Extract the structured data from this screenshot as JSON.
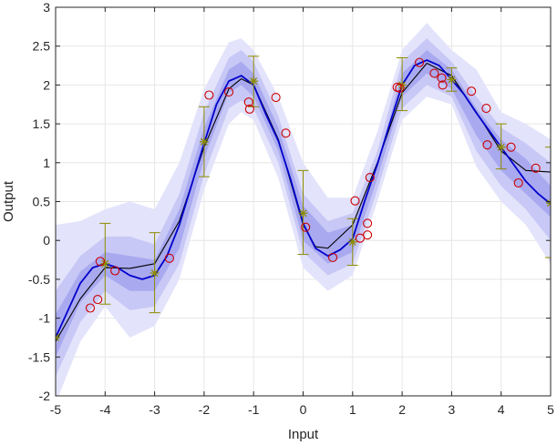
{
  "chart_data": {
    "type": "line",
    "title": "",
    "xlabel": "Input",
    "ylabel": "Output",
    "xlim": [
      -5,
      5
    ],
    "ylim": [
      -2,
      3
    ],
    "xticks": [
      -5,
      -4,
      -3,
      -2,
      -1,
      0,
      1,
      2,
      3,
      4,
      5
    ],
    "yticks": [
      -2,
      -1.5,
      -1,
      -0.5,
      0,
      0.5,
      1,
      1.5,
      2,
      2.5,
      3
    ],
    "xtick_labels": [
      "-5",
      "-4",
      "-3",
      "-2",
      "-1",
      "0",
      "1",
      "2",
      "3",
      "4",
      "5"
    ],
    "ytick_labels": [
      "-2",
      "-1.5",
      "-1",
      "-0.5",
      "0",
      "0.5",
      "1",
      "1.5",
      "2",
      "2.5",
      "3"
    ],
    "grid": true,
    "colors": {
      "outer_band": "#e3e3fb",
      "middle_band": "#c8c8f6",
      "inner_band": "#a9a9f0",
      "mean_line": "#0000cc",
      "true_line": "#000000",
      "observation_marker": "#cc0000",
      "inducing_marker": "#8c8c00",
      "grid": "#e6e6e6",
      "axis": "#262626"
    },
    "series": [
      {
        "kind": "band",
        "x": [
          -5,
          -4.5,
          -4,
          -3.5,
          -3,
          -2.5,
          -2,
          -1.5,
          -1.25,
          -1,
          -0.5,
          0,
          0.5,
          1,
          1.5,
          2,
          2.5,
          3,
          3.5,
          4,
          4.5,
          5
        ],
        "lower": [
          -2.1,
          -1.3,
          -0.85,
          -1.25,
          -1.1,
          -0.5,
          0.65,
          1.5,
          1.65,
          1.55,
          0.8,
          -0.35,
          -0.65,
          -0.45,
          0.5,
          1.55,
          1.85,
          1.75,
          0.95,
          0.5,
          0.2,
          -0.3
        ],
        "upper": [
          0.2,
          0.25,
          0.4,
          0.5,
          0.4,
          1.0,
          1.95,
          2.55,
          2.6,
          2.45,
          1.85,
          1.0,
          0.55,
          0.55,
          1.4,
          2.45,
          2.8,
          2.45,
          2.2,
          1.65,
          1.5,
          1.3
        ]
      },
      {
        "kind": "band",
        "x": [
          -5,
          -4.5,
          -4,
          -3.5,
          -3,
          -2.5,
          -2,
          -1.5,
          -1.25,
          -1,
          -0.5,
          0,
          0.5,
          1,
          1.5,
          2,
          2.5,
          3,
          3.5,
          4,
          4.5,
          5
        ],
        "lower": [
          -1.75,
          -1.05,
          -0.65,
          -0.9,
          -0.85,
          -0.3,
          0.85,
          1.7,
          1.8,
          1.7,
          1.0,
          -0.15,
          -0.45,
          -0.3,
          0.65,
          1.7,
          2.0,
          1.85,
          1.15,
          0.7,
          0.4,
          0.0
        ],
        "upper": [
          -0.65,
          -0.2,
          0.05,
          0.05,
          -0.05,
          0.6,
          1.65,
          2.35,
          2.45,
          2.3,
          1.6,
          0.6,
          0.25,
          0.35,
          1.15,
          2.3,
          2.6,
          2.3,
          1.85,
          1.45,
          1.25,
          1.0
        ]
      },
      {
        "kind": "band",
        "x": [
          -5,
          -4.5,
          -4,
          -3.5,
          -3,
          -2.5,
          -2,
          -1.5,
          -1.25,
          -1,
          -0.5,
          0,
          0.5,
          1,
          1.5,
          2,
          2.5,
          3,
          3.5,
          4,
          4.5,
          5
        ],
        "lower": [
          -1.5,
          -0.8,
          -0.45,
          -0.65,
          -0.65,
          -0.1,
          1.05,
          1.9,
          2.0,
          1.85,
          1.15,
          0.0,
          -0.3,
          -0.15,
          0.8,
          1.85,
          2.15,
          1.95,
          1.35,
          0.9,
          0.6,
          0.3
        ],
        "upper": [
          -0.95,
          -0.4,
          -0.15,
          -0.2,
          -0.25,
          0.4,
          1.45,
          2.2,
          2.3,
          2.15,
          1.45,
          0.45,
          0.1,
          0.2,
          1.0,
          2.15,
          2.45,
          2.2,
          1.7,
          1.3,
          1.05,
          0.7
        ]
      },
      {
        "name": "",
        "kind": "line",
        "role": "true",
        "x": [
          -5,
          -4.5,
          -4,
          -3.5,
          -3,
          -2.5,
          -2,
          -1.5,
          -1.25,
          -1,
          -0.5,
          0,
          0.25,
          0.5,
          1,
          1.5,
          2,
          2.5,
          3,
          3.5,
          4,
          4.5,
          5
        ],
        "y": [
          -1.3,
          -0.75,
          -0.35,
          -0.36,
          -0.3,
          0.25,
          1.2,
          1.95,
          2.08,
          2.0,
          1.3,
          0.2,
          -0.08,
          -0.1,
          0.2,
          1.0,
          1.9,
          2.28,
          2.12,
          1.65,
          1.15,
          0.9,
          0.88
        ]
      },
      {
        "name": "",
        "kind": "line",
        "role": "mean",
        "x": [
          -5,
          -4.75,
          -4.5,
          -4.25,
          -4,
          -3.75,
          -3.5,
          -3.25,
          -3,
          -2.75,
          -2.5,
          -2.25,
          -2,
          -1.75,
          -1.5,
          -1.25,
          -1,
          -0.75,
          -0.5,
          -0.25,
          0,
          0.25,
          0.5,
          0.75,
          1,
          1.25,
          1.5,
          1.75,
          2,
          2.25,
          2.5,
          2.75,
          3,
          3.25,
          3.5,
          3.75,
          4,
          4.25,
          4.5,
          4.75,
          5
        ],
        "y": [
          -1.25,
          -0.9,
          -0.55,
          -0.35,
          -0.3,
          -0.35,
          -0.45,
          -0.5,
          -0.45,
          -0.2,
          0.2,
          0.72,
          1.25,
          1.75,
          2.05,
          2.12,
          2.0,
          1.62,
          1.28,
          0.78,
          0.22,
          -0.1,
          -0.2,
          -0.12,
          0.02,
          0.52,
          0.98,
          1.5,
          2.0,
          2.25,
          2.32,
          2.25,
          2.07,
          1.88,
          1.64,
          1.42,
          1.2,
          0.98,
          0.76,
          0.6,
          0.47
        ]
      },
      {
        "name": "",
        "kind": "scatter",
        "role": "observations",
        "x": [
          -4.3,
          -4.15,
          -4.1,
          -3.8,
          -2.7,
          -1.9,
          -1.5,
          -1.1,
          -1.08,
          -0.55,
          -0.35,
          0.05,
          0.6,
          1.05,
          1.15,
          1.3,
          1.3,
          1.35,
          1.9,
          1.95,
          2.35,
          2.65,
          2.8,
          2.82,
          3.4,
          3.7,
          3.72,
          4.2,
          4.35,
          4.7
        ],
        "y": [
          -0.87,
          -0.76,
          -0.27,
          -0.39,
          -0.23,
          1.87,
          1.91,
          1.78,
          1.69,
          1.84,
          1.38,
          0.17,
          -0.22,
          0.51,
          0.03,
          0.07,
          0.22,
          0.81,
          1.97,
          1.96,
          2.29,
          2.15,
          2.09,
          2.0,
          1.92,
          1.7,
          1.23,
          1.2,
          0.74,
          0.93
        ]
      },
      {
        "name": "",
        "kind": "errorbar",
        "role": "inducing",
        "x": [
          -5,
          -4,
          -3,
          -2,
          -1,
          0,
          1,
          2,
          3,
          4,
          5
        ],
        "y": [
          -1.25,
          -0.3,
          -0.42,
          1.27,
          2.05,
          0.35,
          -0.02,
          2.0,
          2.07,
          1.2,
          0.48
        ],
        "lower": [
          -1.25,
          -0.82,
          -0.93,
          0.82,
          1.72,
          -0.18,
          -0.32,
          1.67,
          1.92,
          0.92,
          -0.22
        ],
        "upper": [
          -1.25,
          0.22,
          0.1,
          1.72,
          2.37,
          0.9,
          0.28,
          2.35,
          2.22,
          1.5,
          1.2
        ]
      }
    ]
  }
}
